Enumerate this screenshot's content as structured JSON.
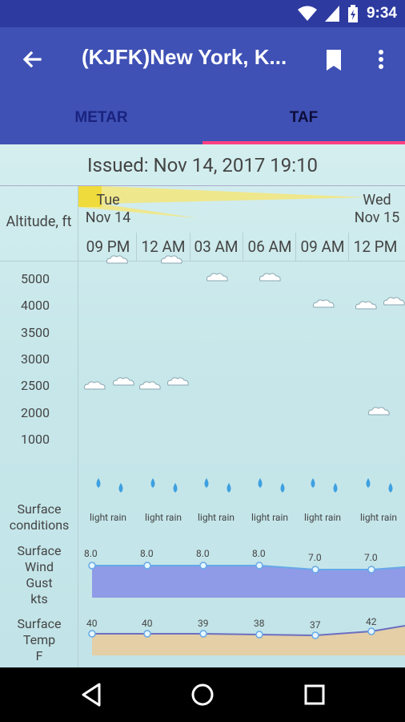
{
  "status": {
    "time": "9:34",
    "icons": [
      "wifi-icon",
      "signal-icon",
      "battery-charging-icon"
    ]
  },
  "appbar": {
    "title": "(KJFK)New York, K...",
    "back_icon": "arrow-back-icon",
    "bookmark_icon": "bookmark-icon",
    "more_icon": "more-vert-icon"
  },
  "tabs": [
    {
      "label": "METAR",
      "selected": false
    },
    {
      "label": "TAF",
      "selected": true
    }
  ],
  "accent_color": "#ff4081",
  "primary_color": "#3f51b5",
  "issued": "Issued: Nov 14, 2017 19:10",
  "altitude_label": "Altitude, ft",
  "dates": [
    {
      "day": "Tue",
      "date": "Nov 14"
    },
    {
      "day": "Wed",
      "date": "Nov 15"
    }
  ],
  "times": [
    "09 PM",
    "12 AM",
    "03 AM",
    "06 AM",
    "09 AM",
    "12 PM"
  ],
  "altitudes": [
    "5000",
    "4000",
    "3500",
    "3000",
    "2500",
    "2000",
    "1000"
  ],
  "rows": {
    "surface_conditions": [
      "Surface",
      "conditions"
    ],
    "surface_wind": [
      "Surface",
      "Wind",
      "Gust",
      "kts"
    ],
    "surface_temp": [
      "Surface",
      "Temp",
      "F"
    ]
  },
  "conditions": [
    "light rain",
    "light rain",
    "light rain",
    "light rain",
    "light rain",
    "light rain"
  ],
  "wind_values": [
    "8.0",
    "8.0",
    "8.0",
    "8.0",
    "7.0",
    "7.0"
  ],
  "temp_values": [
    "40",
    "40",
    "39",
    "38",
    "37",
    "42"
  ],
  "nav": {
    "back": "nav-back-icon",
    "home": "nav-home-icon",
    "recents": "nav-recents-icon"
  }
}
